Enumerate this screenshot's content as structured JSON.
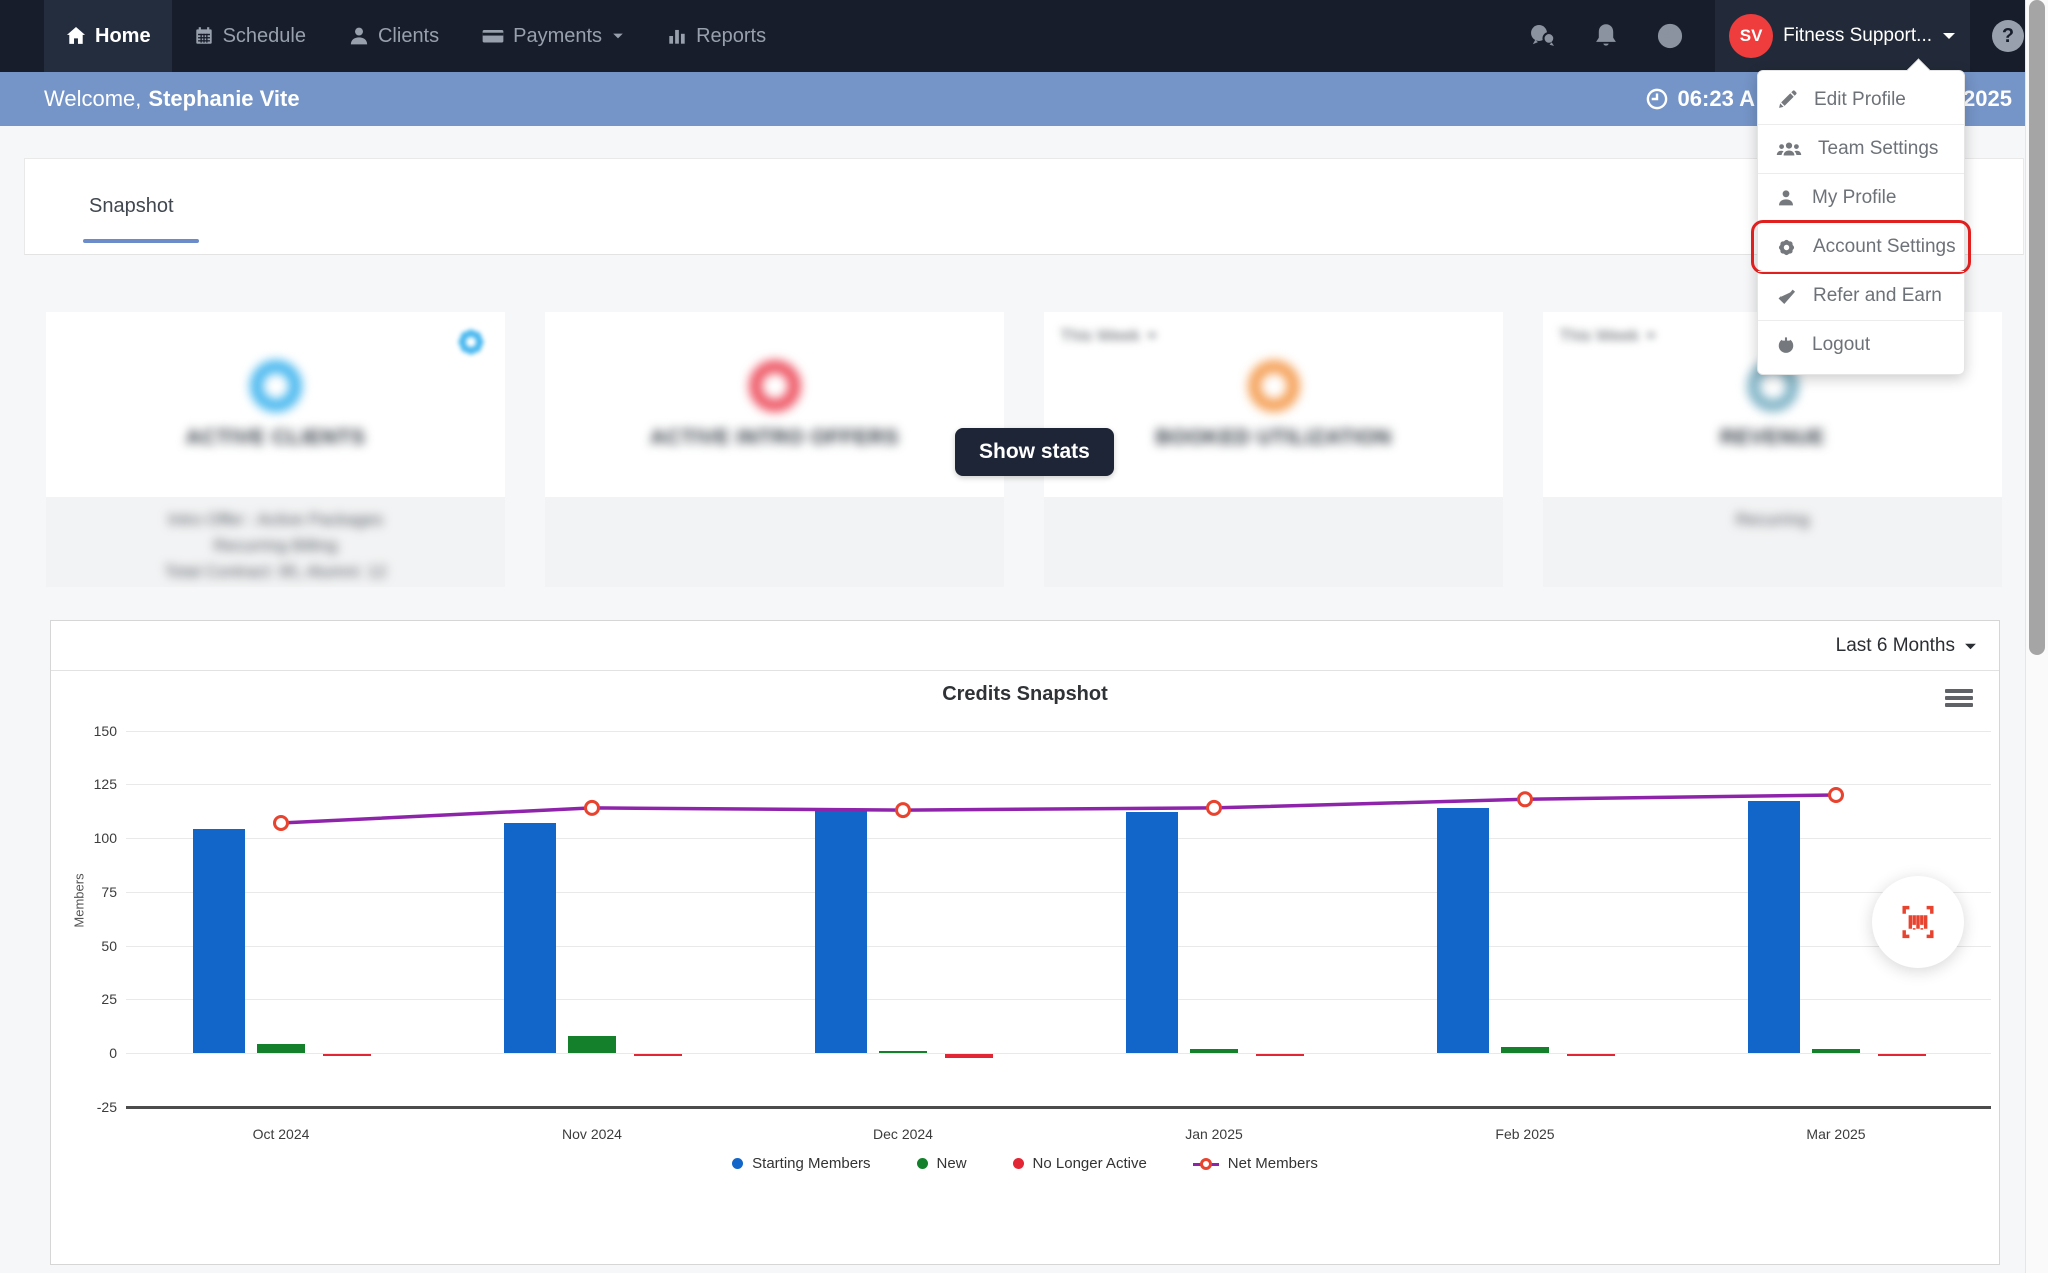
{
  "navbar": {
    "items": [
      {
        "label": "Home",
        "icon": "home",
        "active": true
      },
      {
        "label": "Schedule",
        "icon": "calendar"
      },
      {
        "label": "Clients",
        "icon": "person"
      },
      {
        "label": "Payments",
        "icon": "credit-card",
        "caret": true
      },
      {
        "label": "Reports",
        "icon": "bar-chart"
      }
    ],
    "account": {
      "initials": "SV",
      "name": "Fitness Support..."
    },
    "help_glyph": "?"
  },
  "welcome_bar": {
    "greeting": "Welcome,",
    "name": "Stephanie Vite",
    "time_partial": "06:23 A",
    "year_visible": "2025"
  },
  "profile_menu": {
    "items": [
      {
        "label": "Edit Profile",
        "icon": "pencil"
      },
      {
        "label": "Team Settings",
        "icon": "users"
      },
      {
        "label": "My Profile",
        "icon": "user"
      },
      {
        "label": "Account Settings",
        "icon": "gear",
        "highlighted": true
      },
      {
        "label": "Refer and Earn",
        "icon": "check"
      },
      {
        "label": "Logout",
        "icon": "power"
      }
    ]
  },
  "tabs": {
    "snapshot": "Snapshot"
  },
  "stat_cards": [
    {
      "title": "ACTIVE CLIENTS",
      "accent": "#4cb9ef",
      "gear_icon": true,
      "footer_lines": [
        "Intro Offer : Active Packages",
        "Recurring Billing",
        "Total Contract: 95, Alumni: 12"
      ]
    },
    {
      "title": "ACTIVE INTRO OFFERS",
      "accent": "#ee5a68",
      "footer_lines": []
    },
    {
      "title": "BOOKED UTILIZATION",
      "accent": "#f5a35c",
      "period": "This Week",
      "footer_lines": []
    },
    {
      "title": "REVENUE",
      "accent": "#86b7c9",
      "period": "This Week",
      "footer_lines": [
        "Recurring"
      ]
    }
  ],
  "overlay": {
    "show_stats_label": "Show stats"
  },
  "chart_card": {
    "range_selector": "Last 6 Months"
  },
  "chart_data": {
    "type": "bar",
    "title": "Credits Snapshot",
    "xlabel": "",
    "ylabel": "Members",
    "categories": [
      "Oct 2024",
      "Nov 2024",
      "Dec 2024",
      "Jan 2025",
      "Feb 2025",
      "Mar 2025"
    ],
    "series": [
      {
        "name": "Starting Members",
        "type": "bar",
        "color": "#1266c9",
        "values": [
          104,
          107,
          113,
          112,
          114,
          117
        ]
      },
      {
        "name": "New",
        "type": "bar",
        "color": "#15802c",
        "values": [
          4,
          8,
          1,
          2,
          3,
          2
        ]
      },
      {
        "name": "No Longer Active",
        "type": "bar",
        "color": "#e32636",
        "values": [
          -1,
          -1,
          -2,
          -1,
          -1,
          -1
        ]
      },
      {
        "name": "Net Members",
        "type": "line",
        "color": "#8e24aa",
        "marker_color": "#e8432e",
        "values": [
          107,
          114,
          113,
          114,
          118,
          120
        ]
      }
    ],
    "ylim": [
      -25,
      150
    ],
    "yticks": [
      150,
      125,
      100,
      75,
      50,
      25,
      0,
      -25
    ],
    "grid": true,
    "legend_position": "bottom"
  },
  "colors": {
    "navbar_bg": "#181d2b",
    "welcome_bar": "#7594c7",
    "avatar": "#ef3d3d",
    "tab_accent": "#6b8cc9",
    "highlight_red": "#e01f1f",
    "barcode_icon": "#e8432e"
  }
}
